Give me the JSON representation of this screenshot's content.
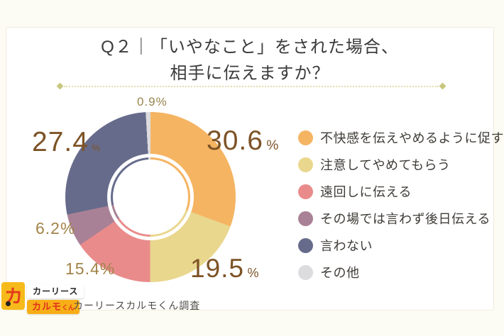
{
  "title": {
    "line1": "Q２｜「いやなこと」をされた場合、",
    "line2": "相手に伝えますか？"
  },
  "chart_data": {
    "type": "pie",
    "donut": true,
    "title": "Q２｜「いやなこと」をされた場合、相手に伝えますか？",
    "start_angle_deg": 0,
    "direction": "clockwise",
    "unit": "%",
    "legend_position": "right",
    "series": [
      {
        "label": "不快感を伝えやめるように促す",
        "value": 30.6,
        "display": "30.6",
        "color": "#F5B462"
      },
      {
        "label": "注意してやめてもらう",
        "value": 19.5,
        "display": "19.5",
        "color": "#E9D78E"
      },
      {
        "label": "遠回しに伝える",
        "value": 15.4,
        "display": "15.4",
        "color": "#E98B8B"
      },
      {
        "label": "その場では言わず後日伝える",
        "value": 6.2,
        "display": "6.2",
        "color": "#A98196"
      },
      {
        "label": "言わない",
        "value": 27.4,
        "display": "27.4",
        "color": "#666B8B"
      },
      {
        "label": "その他",
        "value": 0.9,
        "display": "0.9",
        "color": "#DCDCDE"
      }
    ]
  },
  "footer": {
    "logo": {
      "mark": "カ",
      "top_label": "カーリース",
      "bottom_label": "カルモ",
      "bottom_suffix": "くん"
    },
    "source": "カーリースカルモくん調査"
  }
}
